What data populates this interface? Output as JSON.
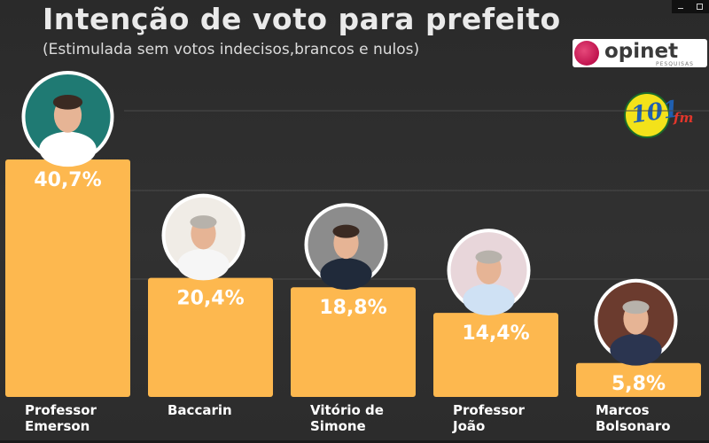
{
  "title": "Intenção de voto para prefeito",
  "subtitle": "(Estimulada sem votos indecisos,brancos e nulos)",
  "brand": {
    "logo_text": "opinet",
    "logo_sub": "PESQUISAS",
    "radio_number": "101",
    "radio_suffix": "fm"
  },
  "colors": {
    "bar": "#fdb84f",
    "background": "#2e2e2e",
    "text": "#ffffff"
  },
  "chart_data": {
    "type": "bar",
    "title": "Intenção de voto para prefeito",
    "subtitle": "(Estimulada sem votos indecisos,brancos e nulos)",
    "categories": [
      [
        "Professor",
        "Emerson"
      ],
      [
        "Baccarin"
      ],
      [
        "Vitório de",
        "Simone"
      ],
      [
        "Professor",
        "João"
      ],
      [
        "Marcos",
        "Bolsonaro"
      ]
    ],
    "values": [
      40.7,
      20.4,
      18.8,
      14.4,
      5.8
    ],
    "data_labels": [
      "40,7%",
      "20,4%",
      "18,8%",
      "14,4%",
      "5,8%"
    ],
    "unit": "%",
    "ylim": [
      0,
      45
    ],
    "grid": true,
    "legend": "none"
  }
}
